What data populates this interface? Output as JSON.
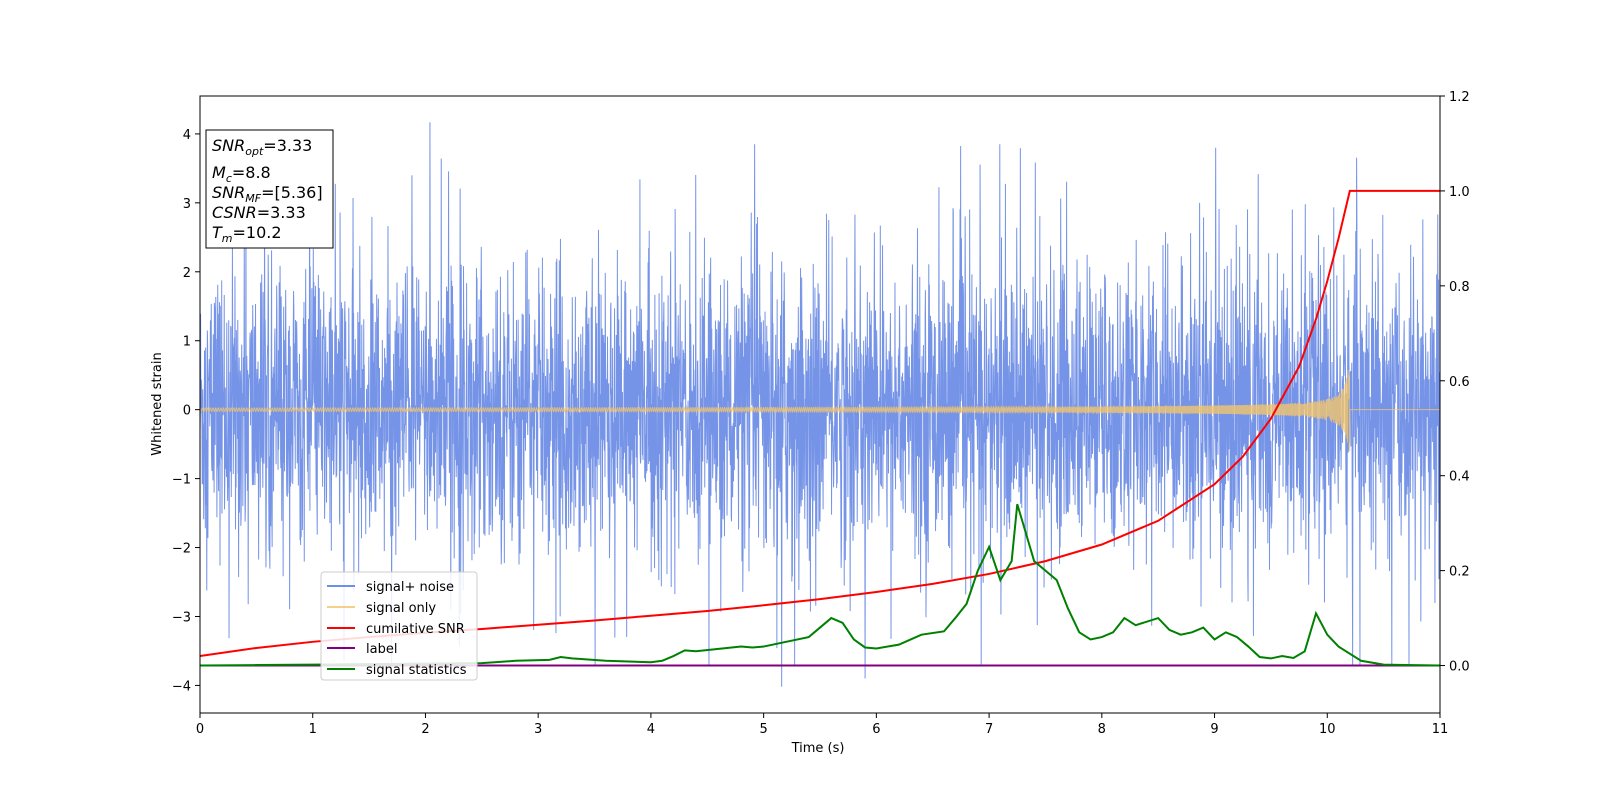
{
  "chart_data": {
    "type": "line",
    "xlabel": "Time (s)",
    "ylabel": "Whitened strain",
    "xlim": [
      0,
      11
    ],
    "ylim": [
      -4.4,
      4.55
    ],
    "y2lim": [
      -0.1,
      1.2
    ],
    "x_ticks": [
      "0",
      "1",
      "2",
      "3",
      "4",
      "5",
      "6",
      "7",
      "8",
      "9",
      "10",
      "11"
    ],
    "y_ticks": [
      "4",
      "3",
      "2",
      "1",
      "0",
      "−1",
      "−2",
      "−3",
      "−4"
    ],
    "y2_ticks": [
      "1.2",
      "1.0",
      "0.8",
      "0.6",
      "0.4",
      "0.2",
      "0.0"
    ],
    "legend_placement": "lower-left",
    "grid": false,
    "annotation": [
      {
        "var": "SNR",
        "sub": "opt",
        "val": "=3.33"
      },
      {
        "var": "M",
        "sub": "c",
        "val": "=8.8"
      },
      {
        "var": "SNR",
        "sub": "MF",
        "val": "=[5.36]"
      },
      {
        "var": "CSNR",
        "sub": "",
        "val": "=3.33"
      },
      {
        "var": "T",
        "sub": "m",
        "val": "=10.2"
      }
    ],
    "series": [
      {
        "name": "signal+ noise",
        "color": "#6f8ee6",
        "axis": "left",
        "kind": "noise",
        "amplitude_envelope": [
          2.3,
          3.4
        ],
        "spike_extremes": {
          "max": 4.17,
          "min": -4.02
        }
      },
      {
        "name": "signal only",
        "color": "#f2c46d",
        "axis": "left",
        "kind": "chirp",
        "merger_time": 10.2,
        "peak_amplitude": 0.6
      },
      {
        "name": "cumilative SNR",
        "color": "#ff0000",
        "axis": "right",
        "x": [
          0,
          0.5,
          1,
          1.5,
          2,
          2.5,
          3,
          3.5,
          4,
          4.5,
          5,
          5.5,
          6,
          6.5,
          7,
          7.5,
          8,
          8.5,
          9,
          9.25,
          9.5,
          9.75,
          9.9,
          10,
          10.1,
          10.15,
          10.2,
          11
        ],
        "values": [
          0.02,
          0.037,
          0.05,
          0.06,
          0.069,
          0.077,
          0.086,
          0.095,
          0.105,
          0.115,
          0.127,
          0.14,
          0.155,
          0.172,
          0.193,
          0.22,
          0.255,
          0.305,
          0.382,
          0.44,
          0.52,
          0.63,
          0.73,
          0.81,
          0.9,
          0.95,
          1.0,
          1.0
        ]
      },
      {
        "name": "label",
        "color": "#800080",
        "axis": "right",
        "x": [
          0,
          11
        ],
        "values": [
          0.0,
          0.0
        ]
      },
      {
        "name": "signal statistics",
        "color": "#008000",
        "axis": "right",
        "x": [
          0,
          0.5,
          1,
          1.5,
          2,
          2.5,
          2.8,
          3.1,
          3.2,
          3.3,
          3.6,
          4,
          4.1,
          4.2,
          4.3,
          4.4,
          4.6,
          4.8,
          4.9,
          5.0,
          5.2,
          5.4,
          5.5,
          5.6,
          5.7,
          5.8,
          5.9,
          6.0,
          6.2,
          6.4,
          6.6,
          6.7,
          6.8,
          6.9,
          7.0,
          7.1,
          7.2,
          7.25,
          7.3,
          7.4,
          7.5,
          7.6,
          7.7,
          7.8,
          7.9,
          8.0,
          8.1,
          8.2,
          8.3,
          8.5,
          8.6,
          8.7,
          8.8,
          8.9,
          9.0,
          9.1,
          9.2,
          9.3,
          9.4,
          9.5,
          9.6,
          9.7,
          9.8,
          9.9,
          10.0,
          10.1,
          10.3,
          10.5,
          11
        ],
        "values": [
          0.0,
          0.001,
          0.002,
          0.003,
          0.004,
          0.005,
          0.01,
          0.012,
          0.018,
          0.015,
          0.01,
          0.007,
          0.01,
          0.02,
          0.032,
          0.03,
          0.035,
          0.04,
          0.038,
          0.04,
          0.05,
          0.06,
          0.08,
          0.1,
          0.09,
          0.055,
          0.038,
          0.036,
          0.044,
          0.065,
          0.072,
          0.1,
          0.13,
          0.2,
          0.25,
          0.18,
          0.22,
          0.34,
          0.3,
          0.22,
          0.2,
          0.18,
          0.12,
          0.07,
          0.055,
          0.06,
          0.07,
          0.1,
          0.085,
          0.1,
          0.075,
          0.065,
          0.07,
          0.08,
          0.055,
          0.07,
          0.06,
          0.04,
          0.018,
          0.015,
          0.02,
          0.016,
          0.03,
          0.11,
          0.065,
          0.04,
          0.01,
          0.002,
          0.0
        ]
      }
    ]
  }
}
